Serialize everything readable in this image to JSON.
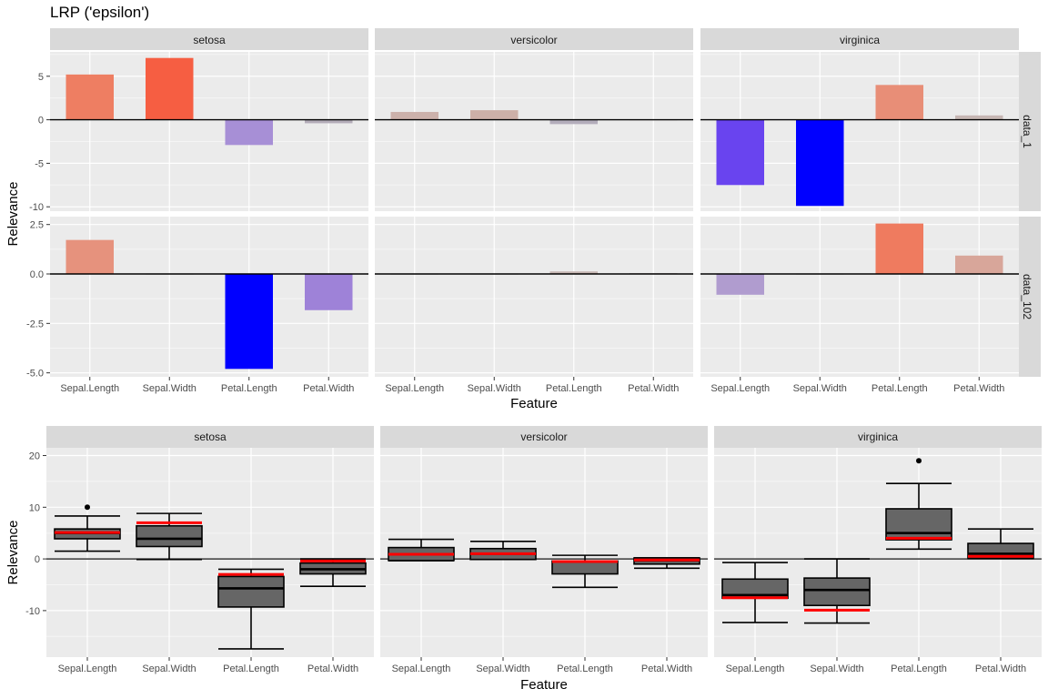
{
  "chart_data": [
    {
      "type": "bar",
      "title": "LRP ('epsilon')",
      "xlabel": "Feature",
      "ylabel": "Relevance",
      "grid": true,
      "legend": "none",
      "categories": [
        "Sepal.Length",
        "Sepal.Width",
        "Petal.Length",
        "Petal.Width"
      ],
      "facet_columns": [
        "setosa",
        "versicolor",
        "virginica"
      ],
      "facet_rows": [
        {
          "name": "data_1",
          "ylim": [
            -10.5,
            7.8
          ],
          "yticks": [
            -10,
            -5,
            0,
            5
          ],
          "ytick_labels": [
            "-10",
            "-5",
            "0",
            "5"
          ],
          "panels": [
            {
              "column": "setosa",
              "values": [
                5.2,
                7.1,
                -2.9,
                -0.4
              ],
              "colors": [
                "#ee7e62",
                "#f65e42",
                "#a78fd6",
                "#b3acb8"
              ]
            },
            {
              "column": "versicolor",
              "values": [
                0.9,
                1.1,
                -0.5,
                0.0
              ],
              "colors": [
                "#ccb1ab",
                "#cdb0a8",
                "#b3adbb",
                "#bfb9ba"
              ]
            },
            {
              "column": "virginica",
              "values": [
                -7.5,
                -9.9,
                4.0,
                0.5
              ],
              "colors": [
                "#6944ef",
                "#0000ff",
                "#e88e77",
                "#c6b6b3"
              ]
            }
          ]
        },
        {
          "name": "data_102",
          "ylim": [
            -5.2,
            2.9
          ],
          "yticks": [
            -5.0,
            -2.5,
            0.0,
            2.5
          ],
          "ytick_labels": [
            "-5.0",
            "-2.5",
            "0.0",
            "2.5"
          ],
          "panels": [
            {
              "column": "setosa",
              "values": [
                1.72,
                -0.02,
                -4.8,
                -1.83
              ],
              "colors": [
                "#e6927d",
                "#bdbabd",
                "#0000ff",
                "#9e82d8"
              ]
            },
            {
              "column": "versicolor",
              "values": [
                0.0,
                0.0,
                0.13,
                0.04
              ],
              "colors": [
                "#c0bbbb",
                "#c0bbbb",
                "#c6b6b3",
                "#c4b8b5"
              ]
            },
            {
              "column": "virginica",
              "values": [
                -1.05,
                0.0,
                2.55,
                0.93
              ],
              "colors": [
                "#b09ccf",
                "#c0bbbb",
                "#ef7b5f",
                "#d8a69a"
              ]
            }
          ]
        }
      ]
    },
    {
      "type": "boxplot",
      "title": "",
      "xlabel": "Feature",
      "ylabel": "Relevance",
      "grid": true,
      "legend": "none",
      "ylim": [
        -19,
        21.5
      ],
      "yticks": [
        -10,
        0,
        10,
        20
      ],
      "ytick_labels": [
        "-10",
        "0",
        "10",
        "20"
      ],
      "categories": [
        "Sepal.Length",
        "Sepal.Width",
        "Petal.Length",
        "Petal.Width"
      ],
      "box_fill": "#666666",
      "highlight_color": "#ff0000",
      "highlight_meaning": "red line = relevance of selected data point",
      "facets": [
        {
          "name": "setosa",
          "boxes": [
            {
              "lower": 1.5,
              "q1": 3.9,
              "median": 5.0,
              "q3": 5.8,
              "upper": 8.3,
              "outliers": [
                10.0
              ],
              "highlight": 5.1
            },
            {
              "lower": -0.1,
              "q1": 2.4,
              "median": 3.9,
              "q3": 6.4,
              "upper": 8.8,
              "outliers": [],
              "highlight": 7.0
            },
            {
              "lower": -17.4,
              "q1": -9.3,
              "median": -5.7,
              "q3": -3.4,
              "upper": -2.0,
              "outliers": [],
              "highlight": -3.0
            },
            {
              "lower": -5.3,
              "q1": -2.9,
              "median": -2.0,
              "q3": -0.8,
              "upper": 0.0,
              "outliers": [],
              "highlight": -0.4
            }
          ]
        },
        {
          "name": "versicolor",
          "boxes": [
            {
              "lower": -0.35,
              "q1": -0.3,
              "median": 0.9,
              "q3": 2.2,
              "upper": 3.8,
              "outliers": [],
              "highlight": 0.9
            },
            {
              "lower": -0.1,
              "q1": -0.1,
              "median": 1.0,
              "q3": 2.0,
              "upper": 3.4,
              "outliers": [],
              "highlight": 1.0
            },
            {
              "lower": -5.5,
              "q1": -2.9,
              "median": -0.5,
              "q3": -0.4,
              "upper": 0.7,
              "outliers": [],
              "highlight": -0.5
            },
            {
              "lower": -1.8,
              "q1": -1.0,
              "median": -0.3,
              "q3": 0.2,
              "upper": 0.2,
              "outliers": [],
              "highlight": -0.2
            }
          ]
        },
        {
          "name": "virginica",
          "boxes": [
            {
              "lower": -12.3,
              "q1": -7.6,
              "median": -7.0,
              "q3": -3.9,
              "upper": -0.7,
              "outliers": [],
              "highlight": -7.5
            },
            {
              "lower": -12.4,
              "q1": -9.0,
              "median": -6.0,
              "q3": -3.7,
              "upper": 0.0,
              "outliers": [],
              "highlight": -9.9
            },
            {
              "lower": 1.9,
              "q1": 3.7,
              "median": 5.0,
              "q3": 9.7,
              "upper": 14.6,
              "outliers": [
                19.0
              ],
              "highlight": 4.0
            },
            {
              "lower": 0.1,
              "q1": 0.1,
              "median": 1.0,
              "q3": 3.0,
              "upper": 5.8,
              "outliers": [],
              "highlight": 0.5
            }
          ]
        }
      ]
    }
  ]
}
